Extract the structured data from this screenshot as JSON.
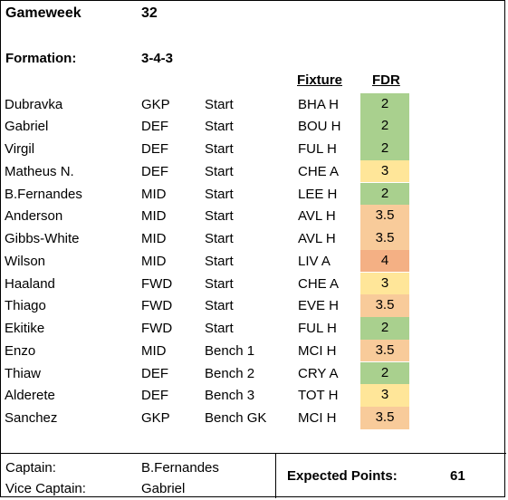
{
  "header": {
    "gameweek_label": "Gameweek",
    "gameweek_value": "32",
    "formation_label": "Formation:",
    "formation_value": "3-4-3"
  },
  "columns": {
    "fixture": "Fixture",
    "fdr": "FDR"
  },
  "colors": {
    "fdr_2": "#a9d08e",
    "fdr_3": "#ffe699",
    "fdr_3_5": "#f8cb9a",
    "fdr_4": "#f4b084"
  },
  "players": [
    {
      "name": "Dubravka",
      "pos": "GKP",
      "role": "Start",
      "fixture": "BHA H",
      "fdr": "2"
    },
    {
      "name": "Gabriel",
      "pos": "DEF",
      "role": "Start",
      "fixture": "BOU H",
      "fdr": "2"
    },
    {
      "name": "Virgil",
      "pos": "DEF",
      "role": "Start",
      "fixture": "FUL H",
      "fdr": "2"
    },
    {
      "name": "Matheus N.",
      "pos": "DEF",
      "role": "Start",
      "fixture": "CHE A",
      "fdr": "3"
    },
    {
      "name": "B.Fernandes",
      "pos": "MID",
      "role": "Start",
      "fixture": "LEE H",
      "fdr": "2"
    },
    {
      "name": "Anderson",
      "pos": "MID",
      "role": "Start",
      "fixture": "AVL H",
      "fdr": "3.5"
    },
    {
      "name": "Gibbs-White",
      "pos": "MID",
      "role": "Start",
      "fixture": "AVL H",
      "fdr": "3.5"
    },
    {
      "name": "Wilson",
      "pos": "MID",
      "role": "Start",
      "fixture": "LIV A",
      "fdr": "4"
    },
    {
      "name": "Haaland",
      "pos": "FWD",
      "role": "Start",
      "fixture": "CHE A",
      "fdr": "3"
    },
    {
      "name": "Thiago",
      "pos": "FWD",
      "role": "Start",
      "fixture": "EVE H",
      "fdr": "3.5"
    },
    {
      "name": "Ekitike",
      "pos": "FWD",
      "role": "Start",
      "fixture": "FUL H",
      "fdr": "2"
    },
    {
      "name": "Enzo",
      "pos": "MID",
      "role": "Bench  1",
      "fixture": "MCI H",
      "fdr": "3.5"
    },
    {
      "name": "Thiaw",
      "pos": "DEF",
      "role": "Bench  2",
      "fixture": "CRY A",
      "fdr": "2"
    },
    {
      "name": "Alderete",
      "pos": "DEF",
      "role": "Bench  3",
      "fixture": "TOT H",
      "fdr": "3"
    },
    {
      "name": "Sanchez",
      "pos": "GKP",
      "role": "Bench  GK",
      "fixture": "MCI H",
      "fdr": "3.5"
    }
  ],
  "footer": {
    "captain_label": "Captain:",
    "captain_value": "B.Fernandes",
    "vice_label": "Vice Captain:",
    "vice_value": "Gabriel",
    "expected_label": "Expected Points:",
    "expected_value": "61"
  }
}
